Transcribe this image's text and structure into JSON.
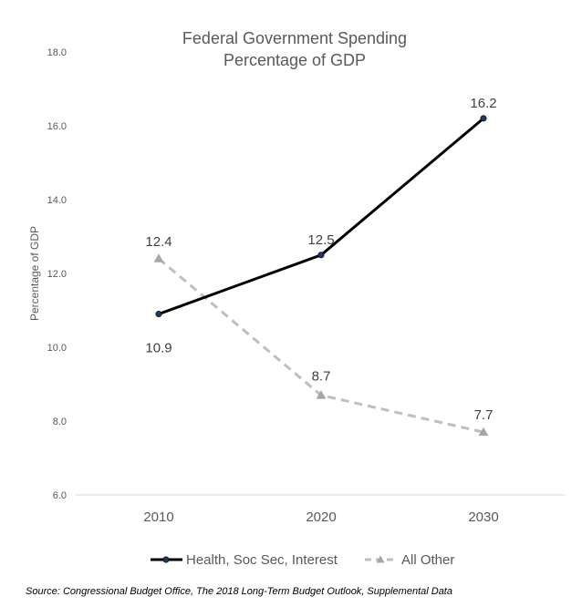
{
  "chart_data": {
    "type": "line",
    "title": [
      "Federal Government Spending",
      "Percentage of GDP"
    ],
    "ylabel": "Percentage of GDP",
    "xlabel": "",
    "categories": [
      "2010",
      "2020",
      "2030"
    ],
    "ylim": [
      6.0,
      18.0
    ],
    "yticks": [
      "6.0",
      "8.0",
      "10.0",
      "12.0",
      "14.0",
      "16.0",
      "18.0"
    ],
    "grid": false,
    "legend_position": "bottom",
    "series": [
      {
        "name": "Health, Soc Sec, Interest",
        "values": [
          10.9,
          12.5,
          16.2
        ],
        "labels": [
          "10.9",
          "12.5",
          "16.2"
        ],
        "color": "#000000",
        "marker": "circle",
        "marker_color": "#1f3864",
        "dash": "solid"
      },
      {
        "name": "All Other",
        "values": [
          12.4,
          8.7,
          7.7
        ],
        "labels": [
          "12.4",
          "8.7",
          "7.7"
        ],
        "color": "#bfbfbf",
        "marker": "triangle",
        "marker_color": "#a6a6a6",
        "dash": "dashed"
      }
    ]
  },
  "source": "Source: Congressional Budget Office, The 2018 Long-Term Budget Outlook, Supplemental Data"
}
